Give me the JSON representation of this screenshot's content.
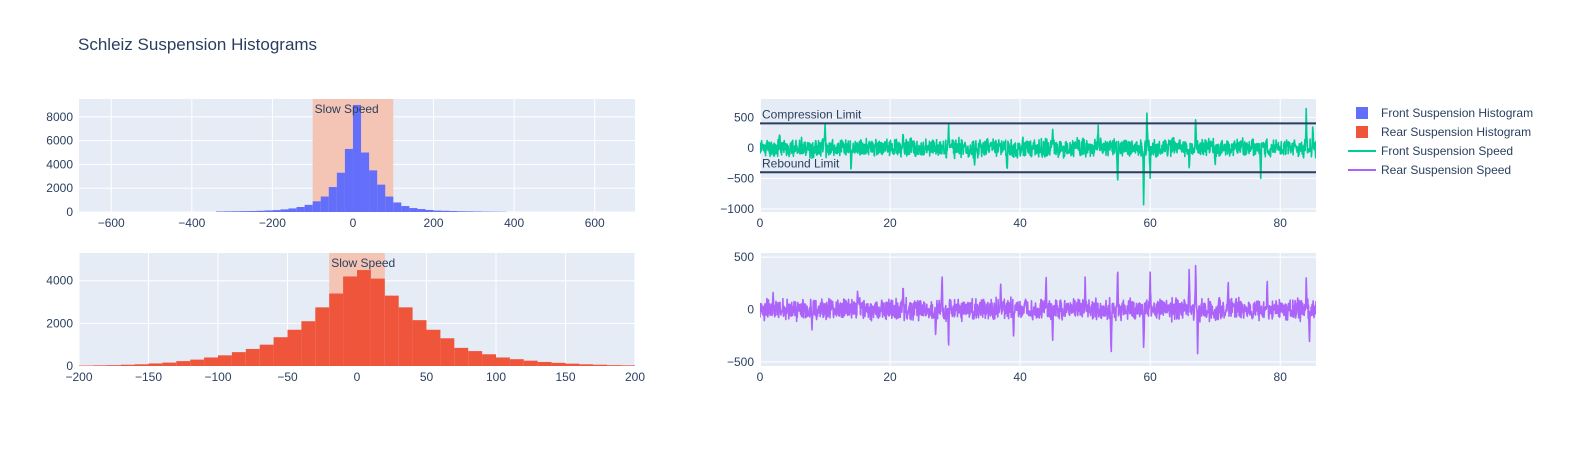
{
  "title": "Schleiz Suspension Histograms",
  "colors": {
    "front": "#636efa",
    "rear": "#ef553b",
    "front_speed": "#00cc96",
    "rear_speed": "#ab63fa",
    "plot_bg": "#e5ecf6",
    "slow_band": "#f4c4b4",
    "limit_line": "#2a3f5f"
  },
  "legend": [
    {
      "label": "Front Suspension Histogram",
      "kind": "square",
      "color": "#636efa"
    },
    {
      "label": "Rear Suspension Histogram",
      "kind": "square",
      "color": "#ef553b"
    },
    {
      "label": "Front Suspension Speed",
      "kind": "line",
      "color": "#00cc96"
    },
    {
      "label": "Rear Suspension Speed",
      "kind": "line",
      "color": "#ab63fa"
    }
  ],
  "chart_data": [
    {
      "id": "front-hist",
      "type": "bar",
      "series_name": "Front Suspension Histogram",
      "color": "#636efa",
      "xlim": [
        -680,
        700
      ],
      "ylim": [
        0,
        9500
      ],
      "xticks": [
        -600,
        -400,
        -200,
        0,
        200,
        400,
        600
      ],
      "yticks": [
        0,
        2000,
        4000,
        6000,
        8000
      ],
      "bin_width": 20,
      "bins": [
        {
          "x0": -340,
          "v": 40
        },
        {
          "x0": -320,
          "v": 50
        },
        {
          "x0": -300,
          "v": 60
        },
        {
          "x0": -280,
          "v": 70
        },
        {
          "x0": -260,
          "v": 80
        },
        {
          "x0": -240,
          "v": 100
        },
        {
          "x0": -220,
          "v": 130
        },
        {
          "x0": -200,
          "v": 160
        },
        {
          "x0": -180,
          "v": 220
        },
        {
          "x0": -160,
          "v": 300
        },
        {
          "x0": -140,
          "v": 420
        },
        {
          "x0": -120,
          "v": 600
        },
        {
          "x0": -100,
          "v": 900
        },
        {
          "x0": -80,
          "v": 1300
        },
        {
          "x0": -60,
          "v": 2100
        },
        {
          "x0": -40,
          "v": 3300
        },
        {
          "x0": -20,
          "v": 5300
        },
        {
          "x0": 0,
          "v": 9000
        },
        {
          "x0": 20,
          "v": 5000
        },
        {
          "x0": 40,
          "v": 3500
        },
        {
          "x0": 60,
          "v": 2300
        },
        {
          "x0": 80,
          "v": 1300
        },
        {
          "x0": 100,
          "v": 800
        },
        {
          "x0": 120,
          "v": 500
        },
        {
          "x0": 140,
          "v": 330
        },
        {
          "x0": 160,
          "v": 250
        },
        {
          "x0": 180,
          "v": 170
        },
        {
          "x0": 200,
          "v": 120
        },
        {
          "x0": 220,
          "v": 100
        },
        {
          "x0": 240,
          "v": 80
        },
        {
          "x0": 260,
          "v": 60
        },
        {
          "x0": 280,
          "v": 50
        },
        {
          "x0": 300,
          "v": 40
        },
        {
          "x0": 320,
          "v": 30
        },
        {
          "x0": 340,
          "v": 25
        },
        {
          "x0": 360,
          "v": 20
        }
      ],
      "band": {
        "x0": -100,
        "x1": 100,
        "label": "Slow Speed"
      }
    },
    {
      "id": "rear-hist",
      "type": "bar",
      "series_name": "Rear Suspension Histogram",
      "color": "#ef553b",
      "xlim": [
        -200,
        200
      ],
      "ylim": [
        0,
        5300
      ],
      "xticks": [
        -200,
        -150,
        -100,
        -50,
        0,
        50,
        100,
        150,
        200
      ],
      "yticks": [
        0,
        2000,
        4000
      ],
      "bin_width": 10,
      "bins": [
        {
          "x0": -200,
          "v": 20
        },
        {
          "x0": -190,
          "v": 30
        },
        {
          "x0": -180,
          "v": 40
        },
        {
          "x0": -170,
          "v": 60
        },
        {
          "x0": -160,
          "v": 80
        },
        {
          "x0": -150,
          "v": 120
        },
        {
          "x0": -140,
          "v": 160
        },
        {
          "x0": -130,
          "v": 230
        },
        {
          "x0": -120,
          "v": 300
        },
        {
          "x0": -110,
          "v": 400
        },
        {
          "x0": -100,
          "v": 500
        },
        {
          "x0": -90,
          "v": 650
        },
        {
          "x0": -80,
          "v": 800
        },
        {
          "x0": -70,
          "v": 1000
        },
        {
          "x0": -60,
          "v": 1350
        },
        {
          "x0": -50,
          "v": 1700
        },
        {
          "x0": -40,
          "v": 2100
        },
        {
          "x0": -30,
          "v": 2750
        },
        {
          "x0": -20,
          "v": 3400
        },
        {
          "x0": -10,
          "v": 4200
        },
        {
          "x0": 0,
          "v": 4500
        },
        {
          "x0": 10,
          "v": 4100
        },
        {
          "x0": 20,
          "v": 3300
        },
        {
          "x0": 30,
          "v": 2750
        },
        {
          "x0": 40,
          "v": 2150
        },
        {
          "x0": 50,
          "v": 1700
        },
        {
          "x0": 60,
          "v": 1300
        },
        {
          "x0": 70,
          "v": 850
        },
        {
          "x0": 80,
          "v": 700
        },
        {
          "x0": 90,
          "v": 550
        },
        {
          "x0": 100,
          "v": 400
        },
        {
          "x0": 110,
          "v": 320
        },
        {
          "x0": 120,
          "v": 250
        },
        {
          "x0": 130,
          "v": 190
        },
        {
          "x0": 140,
          "v": 150
        },
        {
          "x0": 150,
          "v": 110
        },
        {
          "x0": 160,
          "v": 80
        },
        {
          "x0": 170,
          "v": 60
        },
        {
          "x0": 180,
          "v": 40
        },
        {
          "x0": 190,
          "v": 30
        }
      ],
      "band": {
        "x0": -20,
        "x1": 20,
        "label": "Slow Speed"
      }
    },
    {
      "id": "front-speed",
      "type": "line",
      "series_name": "Front Suspension Speed",
      "color": "#00cc96",
      "xlim": [
        0,
        85.5
      ],
      "ylim": [
        -1050,
        800
      ],
      "xticks": [
        0,
        20,
        40,
        60,
        80
      ],
      "yticks": [
        -1000,
        -500,
        0,
        500
      ],
      "noise_amplitude": 160,
      "spikes": [
        [
          3,
          250
        ],
        [
          10,
          420
        ],
        [
          14,
          -400
        ],
        [
          22,
          280
        ],
        [
          29,
          470
        ],
        [
          33,
          -300
        ],
        [
          38,
          -420
        ],
        [
          45,
          350
        ],
        [
          52,
          380
        ],
        [
          55,
          -650
        ],
        [
          59,
          -970
        ],
        [
          59.5,
          580
        ],
        [
          60,
          -500
        ],
        [
          66,
          -380
        ],
        [
          67,
          490
        ],
        [
          70,
          -300
        ],
        [
          77,
          -500
        ],
        [
          84,
          700
        ],
        [
          85,
          350
        ]
      ],
      "hlines": [
        {
          "y": 400,
          "label": "Compression Limit"
        },
        {
          "y": -400,
          "label": "Rebound Limit"
        }
      ]
    },
    {
      "id": "rear-speed",
      "type": "line",
      "series_name": "Rear Suspension Speed",
      "color": "#ab63fa",
      "xlim": [
        0,
        85.5
      ],
      "ylim": [
        -540,
        540
      ],
      "xticks": [
        0,
        20,
        40,
        60,
        80
      ],
      "yticks": [
        -500,
        0,
        500
      ],
      "noise_amplitude": 110,
      "spikes": [
        [
          2,
          180
        ],
        [
          8,
          -200
        ],
        [
          15,
          200
        ],
        [
          22,
          260
        ],
        [
          27,
          -260
        ],
        [
          28,
          350
        ],
        [
          29,
          -400
        ],
        [
          37,
          290
        ],
        [
          39,
          -300
        ],
        [
          44,
          320
        ],
        [
          45,
          -330
        ],
        [
          50,
          330
        ],
        [
          54,
          -470
        ],
        [
          55,
          420
        ],
        [
          59,
          -380
        ],
        [
          60,
          360
        ],
        [
          66,
          420
        ],
        [
          67,
          450
        ],
        [
          67.3,
          -440
        ],
        [
          72,
          300
        ],
        [
          78,
          280
        ],
        [
          84,
          330
        ],
        [
          84.5,
          -320
        ]
      ]
    }
  ]
}
